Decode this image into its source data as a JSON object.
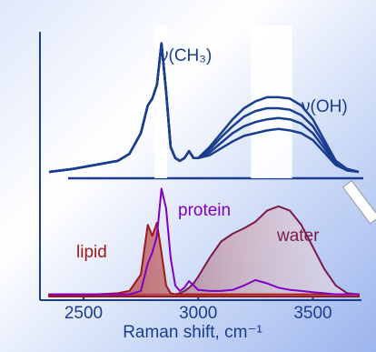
{
  "chart_data": [
    {
      "type": "line",
      "annotations": [
        "ν(CH₃)",
        "ν(OH)"
      ],
      "x": [
        2350,
        2450,
        2550,
        2650,
        2700,
        2750,
        2780,
        2800,
        2820,
        2840,
        2860,
        2880,
        2900,
        2920,
        2940,
        2960,
        2980,
        3000,
        3050,
        3100,
        3150,
        3200,
        3250,
        3300,
        3350,
        3400,
        3450,
        3500,
        3550,
        3600,
        3650,
        3700
      ],
      "xlim": [
        2310,
        3720
      ],
      "ylim": [
        0,
        1
      ],
      "bands": [
        [
          2810,
          2865
        ],
        [
          3230,
          3410
        ]
      ],
      "series": [
        {
          "color": "#1a3d8f",
          "values": [
            0.02,
            0.04,
            0.07,
            0.1,
            0.15,
            0.3,
            0.5,
            0.55,
            0.65,
            0.95,
            0.6,
            0.2,
            0.12,
            0.1,
            0.12,
            0.17,
            0.12,
            0.12,
            0.2,
            0.3,
            0.4,
            0.48,
            0.53,
            0.56,
            0.56,
            0.55,
            0.5,
            0.4,
            0.25,
            0.1,
            0.04,
            0.02
          ]
        },
        {
          "color": "#1a3d8f",
          "values": [
            0.02,
            0.04,
            0.07,
            0.1,
            0.15,
            0.3,
            0.5,
            0.55,
            0.65,
            0.95,
            0.6,
            0.2,
            0.12,
            0.1,
            0.12,
            0.17,
            0.12,
            0.12,
            0.18,
            0.27,
            0.35,
            0.42,
            0.46,
            0.48,
            0.48,
            0.47,
            0.43,
            0.35,
            0.22,
            0.09,
            0.04,
            0.02
          ]
        },
        {
          "color": "#1a3d8f",
          "values": [
            0.02,
            0.04,
            0.07,
            0.1,
            0.15,
            0.3,
            0.5,
            0.55,
            0.65,
            0.95,
            0.6,
            0.2,
            0.12,
            0.1,
            0.12,
            0.17,
            0.12,
            0.12,
            0.16,
            0.23,
            0.3,
            0.35,
            0.38,
            0.4,
            0.41,
            0.4,
            0.37,
            0.3,
            0.19,
            0.08,
            0.03,
            0.02
          ]
        },
        {
          "color": "#1a3d8f",
          "values": [
            0.02,
            0.04,
            0.07,
            0.1,
            0.15,
            0.3,
            0.5,
            0.55,
            0.65,
            0.95,
            0.6,
            0.2,
            0.12,
            0.1,
            0.12,
            0.17,
            0.12,
            0.12,
            0.14,
            0.19,
            0.24,
            0.28,
            0.3,
            0.32,
            0.33,
            0.32,
            0.3,
            0.25,
            0.16,
            0.07,
            0.03,
            0.02
          ]
        }
      ]
    },
    {
      "type": "line",
      "x": [
        2350,
        2450,
        2550,
        2650,
        2700,
        2750,
        2780,
        2800,
        2820,
        2840,
        2860,
        2880,
        2900,
        2920,
        2940,
        2960,
        2980,
        3000,
        3050,
        3100,
        3150,
        3200,
        3250,
        3300,
        3350,
        3400,
        3450,
        3500,
        3550,
        3600,
        3650,
        3700
      ],
      "xlim": [
        2310,
        3720
      ],
      "ylim": [
        0,
        1
      ],
      "xticks": [
        2500,
        3000,
        3500
      ],
      "xlabel": "Raman shift, cm⁻¹",
      "series": [
        {
          "name": "water",
          "color": "#7a1a4a",
          "fill": true,
          "values": [
            0.02,
            0.02,
            0.02,
            0.02,
            0.02,
            0.02,
            0.02,
            0.02,
            0.02,
            0.02,
            0.02,
            0.02,
            0.02,
            0.03,
            0.05,
            0.08,
            0.12,
            0.18,
            0.35,
            0.5,
            0.57,
            0.62,
            0.68,
            0.78,
            0.82,
            0.78,
            0.65,
            0.45,
            0.25,
            0.1,
            0.03,
            0.02
          ]
        },
        {
          "name": "lipid",
          "color": "#a01818",
          "fill": true,
          "values": [
            0.02,
            0.02,
            0.02,
            0.03,
            0.05,
            0.2,
            0.65,
            0.55,
            0.67,
            0.4,
            0.1,
            0.03,
            0.02,
            0.02,
            0.02,
            0.02,
            0.02,
            0.02,
            0.02,
            0.02,
            0.02,
            0.02,
            0.02,
            0.02,
            0.02,
            0.02,
            0.02,
            0.02,
            0.02,
            0.02,
            0.02,
            0.02
          ]
        },
        {
          "name": "protein",
          "color": "#8000c0",
          "fill": false,
          "values": [
            0.02,
            0.02,
            0.02,
            0.02,
            0.02,
            0.05,
            0.3,
            0.4,
            0.55,
            0.98,
            0.8,
            0.35,
            0.1,
            0.05,
            0.08,
            0.14,
            0.1,
            0.06,
            0.05,
            0.05,
            0.06,
            0.1,
            0.15,
            0.12,
            0.08,
            0.06,
            0.05,
            0.04,
            0.03,
            0.02,
            0.02,
            0.02
          ]
        }
      ]
    }
  ]
}
